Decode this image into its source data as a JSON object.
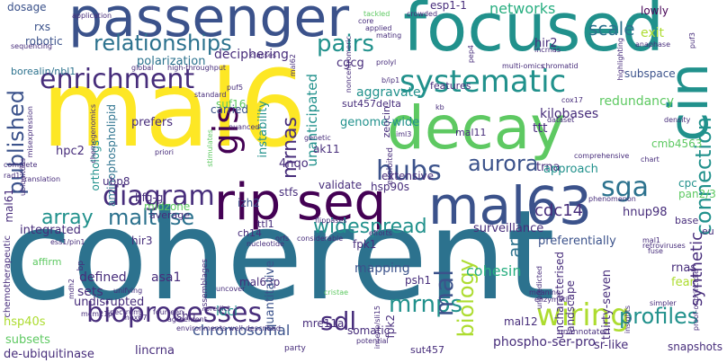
{
  "colors": {
    "background": "#ffffff",
    "palette": [
      "#440154",
      "#472d7b",
      "#3b528b",
      "#2c728e",
      "#21918c",
      "#28ae80",
      "#5ec962",
      "#addc30",
      "#fde725"
    ]
  },
  "words": {
    "coherent": "coherent",
    "mal6": "mal6",
    "focused": "focused",
    "passenger": "passenger",
    "decay": "decay",
    "mal63": "mal63",
    "ripseq": "rip seq",
    "cin": "cin",
    "systematic": "systematic",
    "enrichment": "enrichment",
    "relationships": "relationships",
    "bioprocesses": "bioprocesses",
    "wiring": "wiring",
    "mrnps": "mrnps",
    "diagram": "diagram",
    "gis": "gis",
    "hubs": "hubs",
    "sga": "sga",
    "pairs": "pairs",
    "maltose": "maltose",
    "array": "array",
    "aurora": "aurora",
    "profiles": "profiles",
    "mal": "mal",
    "sdl": "sdl",
    "biology": "biology",
    "connection": "connection",
    "published": "published",
    "mrnas": "mrnas",
    "widespread": "widespread",
    "networks": "networks",
    "cdc14": "cdc14",
    "synthetic": "synthetic",
    "scale": "scale",
    "ars": "ars",
    "chromosomal": "chromosomal",
    "cohesin": "cohesin",
    "dosage": "dosage",
    "rxs": "rxs",
    "robotic": "robotic",
    "borealin": "borealin/nbl1",
    "esp1": "esp1-1",
    "polarization": "polarization",
    "deciphering": "deciphering",
    "cgcg": "cgcg",
    "hir2": "hir2",
    "lowly": "lowly",
    "exit": "exit",
    "aggravate": "aggravate",
    "genomewide": "genome-wide",
    "features": "features",
    "kilobases": "kilobases",
    "redundancy": "redundancy",
    "subspace": "subspace",
    "suf16": "suf16",
    "carried": "carried",
    "instability": "instability",
    "unanticipated": "unanticipated",
    "sut457delta": "sut457delta",
    "prefers": "prefers",
    "hpc2": "hpc2",
    "mal11": "mal11",
    "ttt": "ttt",
    "zeocin": "zeocin",
    "orthologs": "orthologs",
    "aminophospholipid": "aminophospholipid",
    "ak11": "ak11",
    "trna": "trna",
    "approach": "approach",
    "cmb4563": "cmb4563",
    "cpc": "cpc",
    "pan23": "pan2/3",
    "fourqo": "4nqo",
    "ubp8": "ubp8",
    "bfggi": "bfg-gi",
    "midzone": "midzone",
    "izh2": "izh2",
    "stfs": "stfs",
    "hsp90s": "hsp90s",
    "extensive": "extensive",
    "validate": "validate",
    "mal61": "mal61",
    "average": "average",
    "integrated": "integrated",
    "hnup98": "hnup98",
    "surveillance": "surveillance",
    "preferentially": "preferentially",
    "hir3": "hir3",
    "ch14": "ch14",
    "ttl1": "ttl1",
    "fpk1": "fpk1",
    "affirm": "affirm",
    "defined": "defined",
    "sets": "sets",
    "undisrupted": "undisrupted",
    "asa1": "asa1",
    "mal63p": "mal63p",
    "psh1": "psh1",
    "quantitative": "quantitative",
    "mapping": "mapping",
    "landscape": "landscape",
    "rnas": "rnas",
    "fear": "fear",
    "thirtyseven": "thirty-seven",
    "uncharacterised": "uncharacterised",
    "base": "base",
    "eu": "eu",
    "shu": "shu",
    "loci": "loci",
    "mre11a": "mre11a",
    "somatic": "somatic",
    "fpk2": "fpk2",
    "sut457": "sut457",
    "mal12": "mal12",
    "srlike": "sr-like",
    "snapshots": "snapshots",
    "hsp40s": "hsp40s",
    "subsets": "subsets",
    "deubiquitinase": "de-ubiquitinase",
    "lincrna": "lincrna",
    "phosphoserpro": "phospho-ser-pro",
    "chemotherapeutic": "chemotherapeutic",
    "mcm21p": "mcm21p",
    "mex67": "mex67",
    "party": "party",
    "potential": "potential",
    "unannotated": "unannotated",
    "enzymatic": "enzymatic",
    "simpler": "simpler",
    "meaning": "meaning",
    "uncover": "uncover",
    "predict": "predict",
    "spectrum": "spectrum",
    "fourteen": "fourteen",
    "agreement": "agreement",
    "assemblages": "assemblages",
    "mdh2": "mdh2",
    "bp": "bp",
    "cristae": "cristae",
    "unifying": "unifying",
    "nucleotide": "nucleotide",
    "flippases": "flippases",
    "tackled": "tackled",
    "crowded": "crowded",
    "core": "core",
    "applied": "applied",
    "mating": "mating",
    "incrnas": "incrnas",
    "prolyl": "prolyl",
    "bip1": "b/ip1",
    "sequencing": "sequencing",
    "application": "application",
    "global": "global",
    "classes": "classes",
    "highthroughput": "high-throughput",
    "standard": "standard",
    "puf5": "puf5",
    "kb": "kb",
    "dataset": "dataset",
    "cox17": "cox17",
    "density": "density",
    "chart": "chart",
    "comprehensive": "comprehensive",
    "phenomenon": "phenomenon",
    "translation": "translation",
    "complete": "complete",
    "rad1": "rad1",
    "misexpression": "misexpression",
    "chemogenomics": "chemogenomics",
    "priori": "priori",
    "genetic": "genetic",
    "iml3": "iml3",
    "nuanced": "nuanced",
    "pep4": "pep4",
    "chromatid": "chromatid",
    "multiomics": "multi-omics",
    "anaphase": "anaphase",
    "puf3": "puf3",
    "highlighting": "highlighting",
    "retroviruses": "retroviruses",
    "fuse": "fuse",
    "mal1": "mal1",
    "insights": "insights",
    "proofofprinciple": "proof-of-principle",
    "ess1": "ess1/pin1",
    "considerable": "considerable",
    "efforts": "efforts",
    "orfs": "orfs",
    "environments": "environments",
    "welldescribed": "well-described",
    "incenp": "incenp/sli15",
    "unpredicted": "unpredicted",
    "exploited": "exploited",
    "noncentromeric": "noncentromeric",
    "mal62": "mal62",
    "stimulates": "stimulates",
    "ubiquitous": "ubiquitous"
  }
}
